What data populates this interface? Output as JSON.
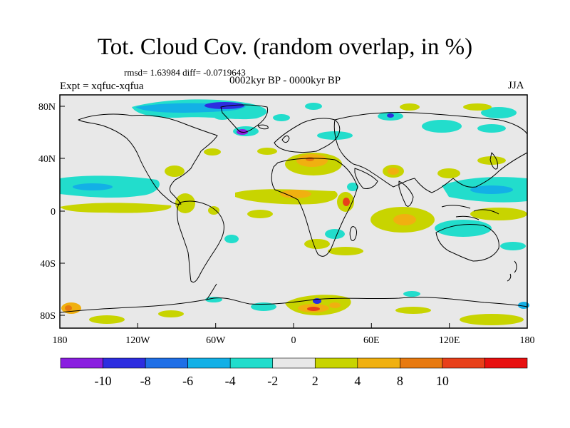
{
  "title": "Tot. Cloud Cov. (random overlap, in %)",
  "stats": "rmsd= 1.63984 diff= -0.0719643",
  "period": "0002kyr BP - 0000kyr BP",
  "experiment": "Expt = xqfuc-xqfua",
  "season": "JJA",
  "axes": {
    "x_ticks": [
      "180",
      "120W",
      "60W",
      "0",
      "60E",
      "120E",
      "180"
    ],
    "y_ticks": [
      "80N",
      "40N",
      "0",
      "40S",
      "80S"
    ]
  },
  "colorbar": {
    "labels": [
      "-10",
      "-8",
      "-6",
      "-4",
      "-2",
      "2",
      "4",
      "8",
      "10"
    ],
    "colors": [
      "#8a1ee0",
      "#2d2de0",
      "#1f6fe6",
      "#13b0e6",
      "#22ddcc",
      "#e8e8e8",
      "#c8d400",
      "#f0b010",
      "#e87a10",
      "#e8401a",
      "#e81010"
    ]
  },
  "map": {
    "background": "#e8e8e8"
  }
}
